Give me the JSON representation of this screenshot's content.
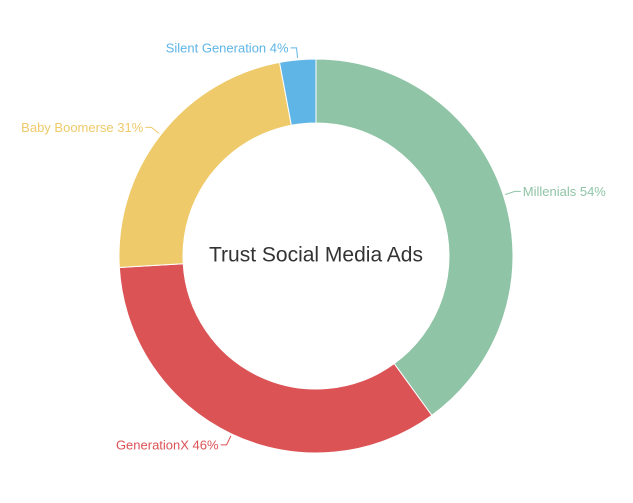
{
  "chart_data": {
    "type": "pie",
    "variant": "donut",
    "title": "Trust Social Media Ads",
    "slices": [
      {
        "name": "Millenials",
        "value": 54,
        "label": "Millenials 54%",
        "color": "#8fc4a6"
      },
      {
        "name": "GenerationX",
        "value": 46,
        "label": "GenerationX 46%",
        "color": "#dc5356"
      },
      {
        "name": "Baby Boomerse",
        "value": 31,
        "label": "Baby Boomerse 31%",
        "color": "#eeca6a"
      },
      {
        "name": "Silent Generation",
        "value": 4,
        "label": "Silent Generation 4%",
        "color": "#5fb5e6"
      }
    ]
  }
}
